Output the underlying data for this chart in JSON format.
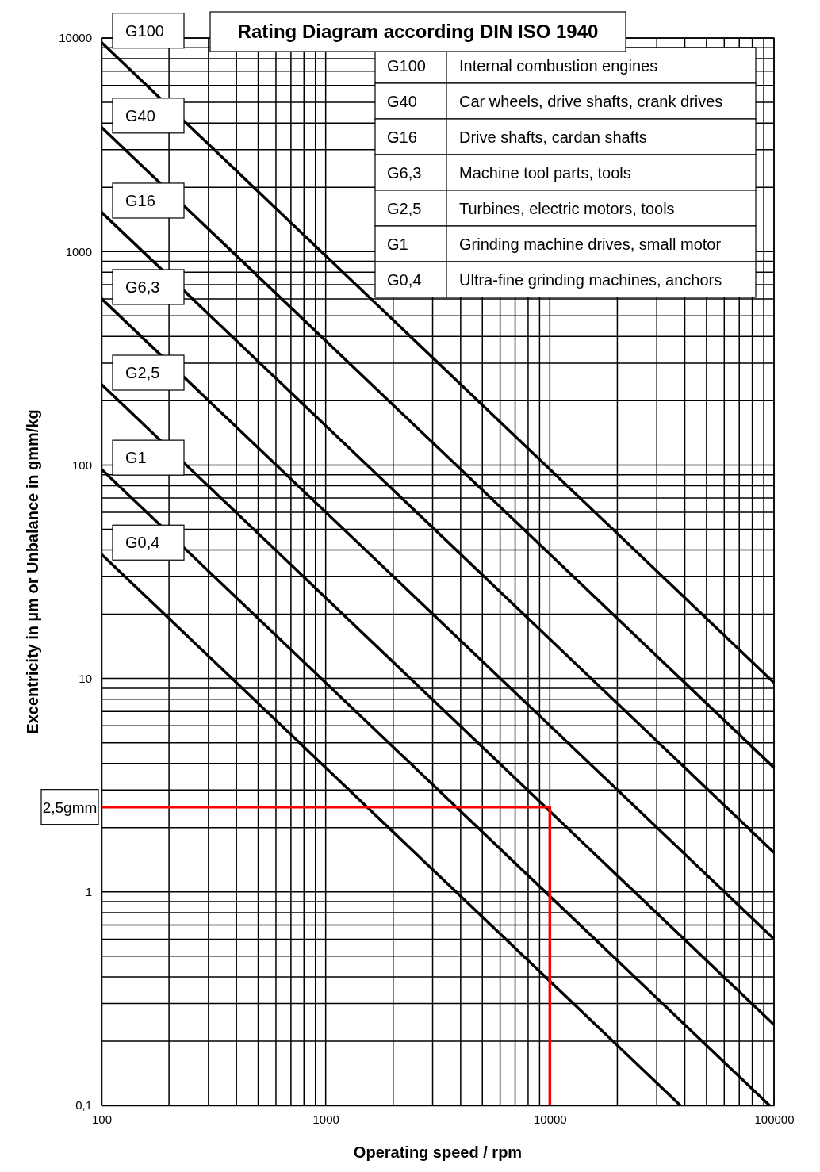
{
  "chart_data": {
    "type": "line",
    "title": "Rating Diagram according DIN ISO 1940",
    "xlabel": "Operating speed / rpm",
    "ylabel": "Excentricity in µm or Unbalance in gmm/kg",
    "log": "xy",
    "grid": true,
    "legend": "top right",
    "marker": "none",
    "line_style": "solid",
    "xlim": [
      100,
      100000
    ],
    "ylim": [
      0.1,
      10000
    ],
    "xticks": [
      100,
      {
        "value": 200,
        "label": null
      },
      {
        "value": 300,
        "label": null
      },
      {
        "value": 400,
        "label": null
      },
      {
        "value": 500,
        "label": null
      },
      {
        "value": 600,
        "label": null
      },
      {
        "value": 700,
        "label": null
      },
      {
        "value": 800,
        "label": null
      },
      {
        "value": 900,
        "label": null
      },
      1000,
      {
        "value": 2000,
        "label": null
      },
      {
        "value": 3000,
        "label": null
      },
      {
        "value": 4000,
        "label": null
      },
      {
        "value": 5000,
        "label": null
      },
      {
        "value": 6000,
        "label": null
      },
      {
        "value": 7000,
        "label": null
      },
      {
        "value": 8000,
        "label": null
      },
      {
        "value": 9000,
        "label": null
      },
      10000,
      {
        "value": 20000,
        "label": null
      },
      {
        "value": 30000,
        "label": null
      },
      {
        "value": 40000,
        "label": null
      },
      {
        "value": 50000,
        "label": null
      },
      {
        "value": 60000,
        "label": null
      },
      {
        "value": 70000,
        "label": null
      },
      {
        "value": 80000,
        "label": null
      },
      {
        "value": 90000,
        "label": null
      },
      100000
    ],
    "yticks": [
      {
        "value": 0.1,
        "label": "0,1"
      },
      {
        "value": 0.2,
        "label": null
      },
      {
        "value": 0.3,
        "label": null
      },
      {
        "value": 0.4,
        "label": null
      },
      {
        "value": 0.5,
        "label": null
      },
      {
        "value": 0.6,
        "label": null
      },
      {
        "value": 0.7,
        "label": null
      },
      {
        "value": 0.8,
        "label": null
      },
      {
        "value": 0.9,
        "label": null
      },
      1,
      {
        "value": 2,
        "label": null
      },
      {
        "value": 3,
        "label": null
      },
      {
        "value": 4,
        "label": null
      },
      {
        "value": 5,
        "label": null
      },
      {
        "value": 6,
        "label": null
      },
      {
        "value": 7,
        "label": null
      },
      {
        "value": 8,
        "label": null
      },
      {
        "value": 9,
        "label": null
      },
      10,
      {
        "value": 20,
        "label": null
      },
      {
        "value": 30,
        "label": null
      },
      {
        "value": 40,
        "label": null
      },
      {
        "value": 50,
        "label": null
      },
      {
        "value": 60,
        "label": null
      },
      {
        "value": 70,
        "label": null
      },
      {
        "value": 80,
        "label": null
      },
      {
        "value": 90,
        "label": null
      },
      100,
      {
        "value": 200,
        "label": null
      },
      {
        "value": 300,
        "label": null
      },
      {
        "value": 400,
        "label": null
      },
      {
        "value": 500,
        "label": null
      },
      {
        "value": 600,
        "label": null
      },
      {
        "value": 700,
        "label": null
      },
      {
        "value": 800,
        "label": null
      },
      {
        "value": 900,
        "label": null
      },
      1000,
      {
        "value": 2000,
        "label": null
      },
      {
        "value": 3000,
        "label": null
      },
      {
        "value": 4000,
        "label": null
      },
      {
        "value": 5000,
        "label": null
      },
      {
        "value": 6000,
        "label": null
      },
      {
        "value": 7000,
        "label": null
      },
      {
        "value": 8000,
        "label": null
      },
      {
        "value": 9000,
        "label": null
      },
      10000
    ],
    "series": [
      {
        "name": "G100",
        "color": "#000000",
        "x": [
          100,
          100000
        ],
        "values": [
          9549,
          9.549
        ]
      },
      {
        "name": "G40",
        "color": "#000000",
        "x": [
          100,
          100000
        ],
        "values": [
          3820,
          3.82
        ]
      },
      {
        "name": "G16",
        "color": "#000000",
        "x": [
          100,
          100000
        ],
        "values": [
          1528,
          1.528
        ]
      },
      {
        "name": "G6,3",
        "color": "#000000",
        "x": [
          100,
          100000
        ],
        "values": [
          601.6,
          0.6016
        ]
      },
      {
        "name": "G2,5",
        "color": "#000000",
        "x": [
          100,
          100000
        ],
        "values": [
          238.7,
          0.2387
        ]
      },
      {
        "name": "G1",
        "color": "#000000",
        "x": [
          100,
          95490
        ],
        "values": [
          95.49,
          0.1
        ]
      },
      {
        "name": "G0,4",
        "color": "#000000",
        "x": [
          100,
          38200
        ],
        "values": [
          38.2,
          0.1
        ]
      },
      {
        "color": "#ff0000",
        "x": [
          100,
          10000,
          10000
        ],
        "values": [
          2.5,
          2.5,
          0.1
        ]
      }
    ],
    "annotations": [
      "Internal combustion engines",
      "Car wheels, drive shafts, crank drives",
      "Drive shafts, cardan shafts",
      "Machine tool parts, tools",
      "Turbines, electric motors, tools",
      "Grinding machine drives, small motor",
      "Ultra-fine grinding machines, anchors",
      {
        "text": "2,5gmm",
        "x": 100,
        "y": 2.5
      }
    ]
  }
}
